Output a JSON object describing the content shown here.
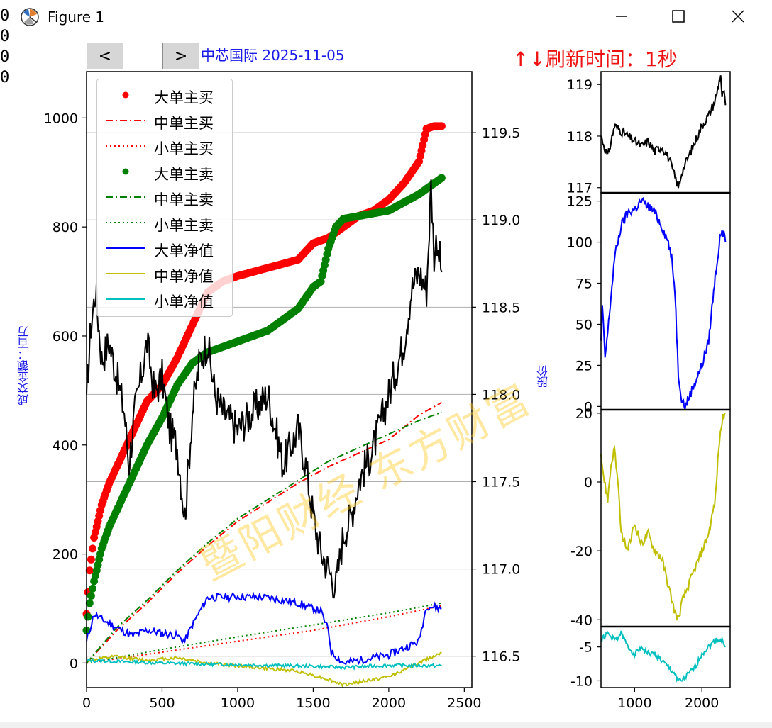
{
  "window": {
    "title": "Figure 1",
    "left_strip_text": [
      "0",
      "0",
      "0",
      "0"
    ]
  },
  "toolbar": {
    "prev_label": "<",
    "next_label": ">"
  },
  "header": {
    "stock_title": "中芯国际 2025-11-05",
    "refresh_text": "↑↓刷新时间：1秒"
  },
  "watermark": "暨阳财经 东方财富",
  "colors": {
    "buy": "#ff0000",
    "sell": "#008000",
    "large_net": "#0000ff",
    "mid_net": "#bfbf00",
    "small_net": "#00bfbf",
    "price": "#000000",
    "grid": "#b0b0b0"
  },
  "chart_data": [
    {
      "type": "line",
      "name_panel": "main",
      "ylabel": "成交金额：百万",
      "y2label": "股价",
      "xlim": [
        0,
        2550
      ],
      "ylim": [
        -45,
        1085
      ],
      "y2lim": [
        116.32,
        119.85
      ],
      "xticks": [
        0,
        500,
        1000,
        1500,
        2000,
        2500
      ],
      "yticks": [
        0,
        200,
        400,
        600,
        800,
        1000
      ],
      "y2ticks": [
        116.5,
        117.0,
        117.5,
        118.0,
        118.5,
        119.0,
        119.5
      ],
      "legend_position": "upper-left",
      "grid": "horizontal-right-axis",
      "series": [
        {
          "name": "大单主买",
          "style": "dots",
          "color": "#ff0000",
          "x": [
            0,
            20,
            50,
            100,
            150,
            200,
            300,
            400,
            500,
            600,
            700,
            800,
            900,
            1000,
            1200,
            1400,
            1500,
            1600,
            1700,
            1800,
            1900,
            2000,
            2100,
            2200,
            2250,
            2300,
            2350
          ],
          "y": [
            90,
            170,
            230,
            290,
            330,
            360,
            420,
            480,
            510,
            560,
            620,
            680,
            700,
            710,
            725,
            740,
            770,
            780,
            800,
            820,
            830,
            850,
            880,
            920,
            980,
            985,
            985
          ]
        },
        {
          "name": "中单主买",
          "style": "dashdot",
          "color": "#ff0000",
          "x": [
            0,
            200,
            400,
            600,
            800,
            1000,
            1200,
            1400,
            1600,
            1800,
            2000,
            2200,
            2350
          ],
          "y": [
            0,
            60,
            110,
            165,
            215,
            260,
            295,
            330,
            360,
            385,
            410,
            455,
            478
          ]
        },
        {
          "name": "小单主买",
          "style": "dotted",
          "color": "#ff0000",
          "x": [
            0,
            500,
            1000,
            1500,
            2000,
            2350
          ],
          "y": [
            0,
            20,
            40,
            60,
            85,
            105
          ]
        },
        {
          "name": "大单主卖",
          "style": "dots",
          "color": "#008000",
          "x": [
            0,
            20,
            50,
            100,
            150,
            200,
            300,
            400,
            500,
            600,
            700,
            800,
            1000,
            1200,
            1400,
            1500,
            1550,
            1600,
            1650,
            1700,
            1800,
            2000,
            2200,
            2350
          ],
          "y": [
            60,
            110,
            150,
            210,
            250,
            280,
            340,
            400,
            450,
            510,
            550,
            570,
            590,
            610,
            650,
            690,
            700,
            760,
            800,
            815,
            820,
            830,
            860,
            890
          ]
        },
        {
          "name": "中单主卖",
          "style": "dashdot",
          "color": "#008000",
          "x": [
            0,
            200,
            400,
            600,
            800,
            1000,
            1200,
            1400,
            1600,
            1800,
            2000,
            2200,
            2350
          ],
          "y": [
            0,
            65,
            115,
            170,
            220,
            265,
            300,
            335,
            370,
            395,
            420,
            445,
            460
          ]
        },
        {
          "name": "小单主卖",
          "style": "dotted",
          "color": "#008000",
          "x": [
            0,
            500,
            1000,
            1500,
            2000,
            2350
          ],
          "y": [
            0,
            25,
            48,
            70,
            92,
            110
          ]
        },
        {
          "name": "大单净值",
          "style": "solid",
          "color": "#0000ff",
          "x": [
            0,
            50,
            100,
            200,
            300,
            400,
            500,
            600,
            650,
            700,
            800,
            1000,
            1200,
            1400,
            1550,
            1600,
            1620,
            1700,
            1800,
            2000,
            2200,
            2250,
            2350
          ],
          "y": [
            40,
            90,
            80,
            65,
            50,
            60,
            55,
            50,
            40,
            70,
            120,
            122,
            120,
            110,
            95,
            60,
            20,
            0,
            5,
            15,
            40,
            105,
            100
          ]
        },
        {
          "name": "中单净值",
          "style": "solid",
          "color": "#bfbf00",
          "x": [
            0,
            200,
            400,
            600,
            800,
            1000,
            1200,
            1400,
            1600,
            1700,
            1800,
            2000,
            2200,
            2350
          ],
          "y": [
            5,
            12,
            5,
            10,
            0,
            -5,
            -10,
            -15,
            -30,
            -40,
            -35,
            -25,
            0,
            20
          ]
        },
        {
          "name": "小单净值",
          "style": "solid",
          "color": "#00bfbf",
          "x": [
            0,
            500,
            1000,
            1500,
            1700,
            2000,
            2350
          ],
          "y": [
            5,
            0,
            -3,
            -6,
            -8,
            -4,
            -5
          ]
        },
        {
          "name": "股价",
          "style": "solid",
          "axis": "right",
          "color": "#000000",
          "x": [
            0,
            30,
            60,
            100,
            150,
            200,
            250,
            280,
            320,
            400,
            450,
            500,
            550,
            600,
            650,
            700,
            750,
            800,
            850,
            900,
            1000,
            1100,
            1200,
            1300,
            1400,
            1450,
            1500,
            1550,
            1600,
            1650,
            1700,
            1750,
            1800,
            1900,
            2000,
            2100,
            2150,
            2200,
            2250,
            2280,
            2300,
            2320,
            2350
          ],
          "y": [
            118.0,
            118.4,
            118.6,
            118.2,
            118.3,
            118.1,
            117.9,
            117.6,
            117.9,
            118.3,
            118.0,
            118.1,
            117.8,
            117.7,
            117.3,
            117.9,
            118.2,
            118.3,
            118.0,
            117.9,
            117.8,
            117.9,
            118.0,
            117.6,
            117.8,
            117.6,
            117.3,
            117.1,
            117.0,
            116.9,
            117.2,
            117.3,
            117.5,
            117.7,
            118.0,
            118.3,
            118.6,
            118.7,
            118.6,
            119.2,
            118.8,
            118.9,
            118.7
          ]
        }
      ]
    },
    {
      "type": "line",
      "name_panel": "price-side",
      "xlim": [
        500,
        2420
      ],
      "ylim": [
        116.9,
        119.25
      ],
      "yticks": [
        117,
        118,
        119
      ],
      "series": [
        {
          "color": "#000000",
          "x": [
            500,
            600,
            700,
            800,
            900,
            1000,
            1100,
            1200,
            1300,
            1400,
            1500,
            1600,
            1650,
            1700,
            1800,
            1900,
            2000,
            2100,
            2200,
            2280,
            2300,
            2320,
            2350
          ],
          "y": [
            118.0,
            117.6,
            118.2,
            118.1,
            118.0,
            117.9,
            117.8,
            117.9,
            117.7,
            117.8,
            117.6,
            117.2,
            117.0,
            117.3,
            117.6,
            117.9,
            118.2,
            118.4,
            118.7,
            119.2,
            118.7,
            118.9,
            118.6
          ]
        }
      ]
    },
    {
      "type": "line",
      "name_panel": "large-net-side",
      "xlim": [
        500,
        2420
      ],
      "ylim": [
        -2,
        130
      ],
      "yticks": [
        0,
        25,
        50,
        75,
        100,
        125
      ],
      "series": [
        {
          "color": "#0000ff",
          "x": [
            500,
            520,
            560,
            600,
            700,
            800,
            900,
            1000,
            1100,
            1200,
            1300,
            1400,
            1450,
            1500,
            1550,
            1600,
            1650,
            1700,
            1750,
            1800,
            1900,
            2000,
            2100,
            2200,
            2280,
            2300,
            2350
          ],
          "y": [
            40,
            60,
            30,
            45,
            90,
            110,
            118,
            120,
            125,
            122,
            118,
            110,
            105,
            100,
            90,
            70,
            20,
            5,
            0,
            5,
            15,
            25,
            40,
            80,
            105,
            108,
            100
          ]
        }
      ]
    },
    {
      "type": "line",
      "name_panel": "mid-net-side",
      "xlim": [
        500,
        2420
      ],
      "ylim": [
        -42,
        21
      ],
      "yticks": [
        -40,
        -20,
        0,
        20
      ],
      "series": [
        {
          "color": "#bfbf00",
          "x": [
            500,
            550,
            600,
            650,
            700,
            750,
            800,
            900,
            1000,
            1100,
            1200,
            1300,
            1400,
            1500,
            1600,
            1650,
            1700,
            1800,
            1900,
            2000,
            2100,
            2200,
            2250,
            2300,
            2350
          ],
          "y": [
            8,
            0,
            -5,
            5,
            10,
            0,
            -15,
            -20,
            -12,
            -18,
            -15,
            -20,
            -22,
            -30,
            -38,
            -40,
            -35,
            -30,
            -25,
            -20,
            -15,
            -5,
            10,
            18,
            20
          ]
        }
      ]
    },
    {
      "type": "line",
      "name_panel": "small-net-side",
      "xlim": [
        500,
        2420
      ],
      "ylim": [
        -11,
        -2
      ],
      "yticks": [
        -10,
        -5
      ],
      "series": [
        {
          "color": "#00bfbf",
          "x": [
            500,
            600,
            700,
            800,
            900,
            1000,
            1100,
            1200,
            1300,
            1400,
            1500,
            1600,
            1650,
            1700,
            1800,
            1900,
            2000,
            2100,
            2200,
            2300,
            2350
          ],
          "y": [
            -4,
            -3,
            -4,
            -3,
            -5,
            -6,
            -5,
            -6,
            -6,
            -7,
            -8,
            -9,
            -10,
            -10,
            -9,
            -8,
            -6,
            -5,
            -4,
            -4,
            -5
          ]
        }
      ]
    }
  ],
  "side_xticks": [
    1000,
    2000
  ]
}
